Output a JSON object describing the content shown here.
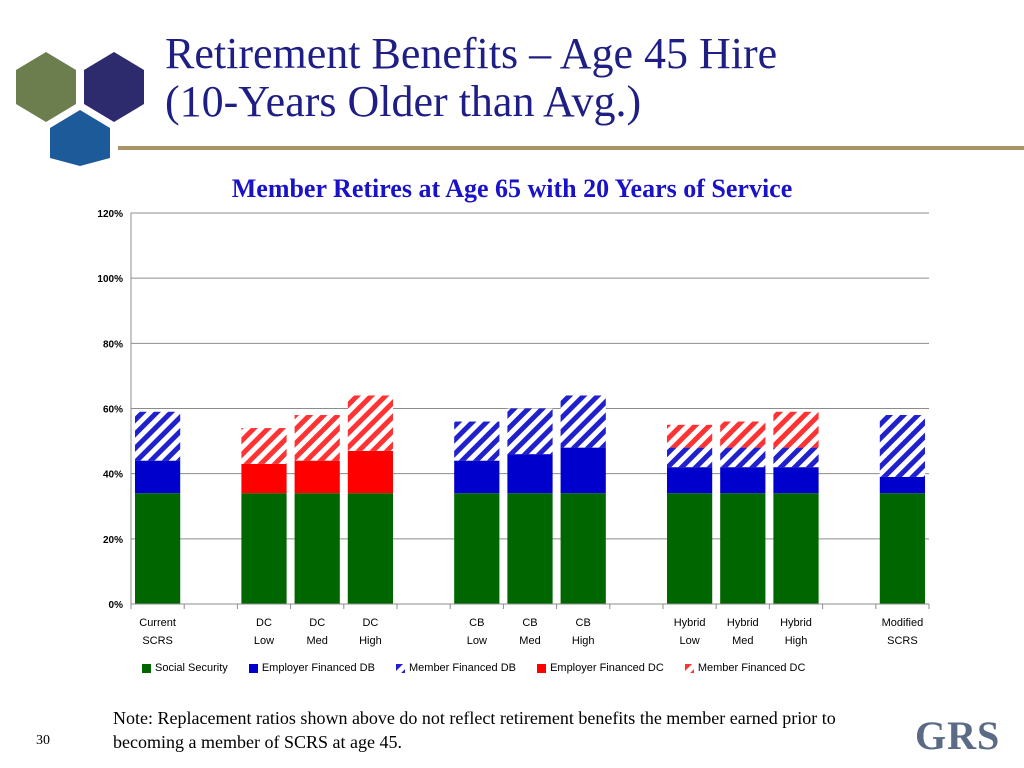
{
  "slide": {
    "title_line1": "Retirement Benefits – Age 45 Hire",
    "title_line2": "(10-Years Older than Avg.)",
    "note": "Note:  Replacement ratios shown above do not reflect retirement benefits the member earned prior to becoming a member of SCRS at age 45.",
    "page_number": "30",
    "logo_text": "GRS"
  },
  "colors": {
    "title": "#1f1e85",
    "chart_title": "#1a12c8",
    "rule": "#a99368",
    "social_security": "#006600",
    "employer_db": "#0000cc",
    "member_db": "#2020cc",
    "employer_dc": "#ff0000",
    "member_dc": "#ff3333"
  },
  "chart_data": {
    "type": "bar",
    "stacked": true,
    "title": "Member Retires at Age 65 with 20 Years of Service",
    "ylim": [
      0,
      120
    ],
    "yticks": [
      "0%",
      "20%",
      "40%",
      "60%",
      "80%",
      "100%",
      "120%"
    ],
    "grid": true,
    "legend_position": "bottom",
    "slots": 15,
    "categories": [
      {
        "line1": "Current",
        "line2": "SCRS",
        "slot": 0
      },
      {
        "line1": "DC",
        "line2": "Low",
        "slot": 2
      },
      {
        "line1": "DC",
        "line2": "Med",
        "slot": 3
      },
      {
        "line1": "DC",
        "line2": "High",
        "slot": 4
      },
      {
        "line1": "CB",
        "line2": "Low",
        "slot": 6
      },
      {
        "line1": "CB",
        "line2": "Med",
        "slot": 7
      },
      {
        "line1": "CB",
        "line2": "High",
        "slot": 8
      },
      {
        "line1": "Hybrid",
        "line2": "Low",
        "slot": 10
      },
      {
        "line1": "Hybrid",
        "line2": "Med",
        "slot": 11
      },
      {
        "line1": "Hybrid",
        "line2": "High",
        "slot": 12
      },
      {
        "line1": "Modified",
        "line2": "SCRS",
        "slot": 14
      }
    ],
    "series": [
      {
        "name": "Social Security",
        "key": "social_security",
        "pattern": "solid",
        "values": [
          34,
          34,
          34,
          34,
          34,
          34,
          34,
          34,
          34,
          34,
          34
        ]
      },
      {
        "name": "Employer Financed DB",
        "key": "employer_db",
        "pattern": "solid",
        "values": [
          10,
          0,
          0,
          0,
          10,
          12,
          14,
          8,
          8,
          8,
          5
        ]
      },
      {
        "name": "Member Financed  DB",
        "key": "member_db",
        "pattern": "hatch",
        "values": [
          15,
          0,
          0,
          0,
          12,
          14,
          16,
          6,
          6,
          6,
          19
        ]
      },
      {
        "name": "Employer Financed  DC",
        "key": "employer_dc",
        "pattern": "solid",
        "values": [
          0,
          9,
          10,
          13,
          0,
          0,
          0,
          0,
          0,
          0,
          0
        ]
      },
      {
        "name": "Member Financed  DC",
        "key": "member_dc",
        "pattern": "hatch",
        "values": [
          0,
          11,
          14,
          17,
          0,
          0,
          0,
          7,
          8,
          11,
          0
        ]
      }
    ]
  }
}
